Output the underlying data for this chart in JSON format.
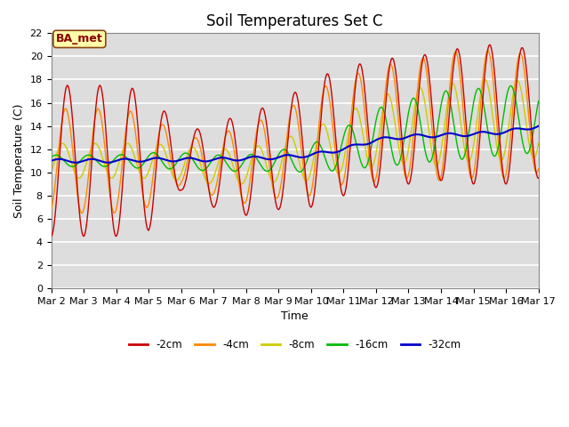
{
  "title": "Soil Temperatures Set C",
  "xlabel": "Time",
  "ylabel": "Soil Temperature (C)",
  "legend_label": "BA_met",
  "ylim": [
    0,
    22
  ],
  "yticks": [
    0,
    2,
    4,
    6,
    8,
    10,
    12,
    14,
    16,
    18,
    20,
    22
  ],
  "xtick_labels": [
    "Mar 2",
    "Mar 3",
    "Mar 4",
    "Mar 5",
    "Mar 6",
    "Mar 7",
    "Mar 8",
    "Mar 9",
    "Mar 10",
    "Mar 11",
    "Mar 12",
    "Mar 13",
    "Mar 14",
    "Mar 15",
    "Mar 16",
    "Mar 17"
  ],
  "colors": {
    "-2cm": "#cc0000",
    "-4cm": "#ff8800",
    "-8cm": "#cccc00",
    "-16cm": "#00bb00",
    "-32cm": "#0000cc"
  },
  "series_labels": [
    "-2cm",
    "-4cm",
    "-8cm",
    "-16cm",
    "-32cm"
  ],
  "fig_bg_color": "#ffffff",
  "plot_bg_color": "#dddddd",
  "grid_color": "#ffffff",
  "title_fontsize": 12,
  "axis_fontsize": 9,
  "tick_fontsize": 8
}
